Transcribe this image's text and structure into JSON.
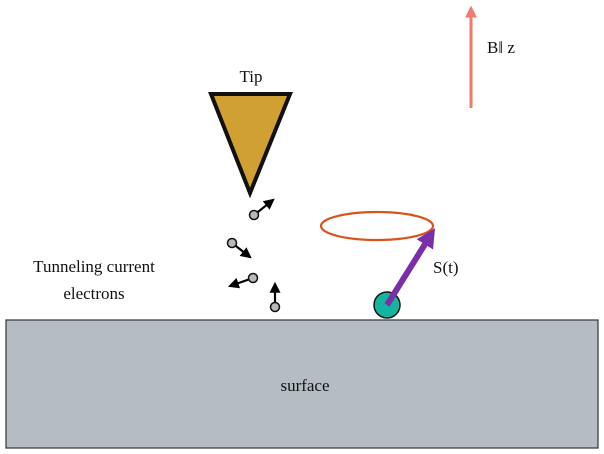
{
  "labels": {
    "tip": "Tip",
    "field": "B‖ z",
    "tunneling_line1": "Tunneling current",
    "tunneling_line2": "electrons",
    "spin": "S(t)",
    "surface": "surface"
  },
  "colors": {
    "tip_fill": "#d1a032",
    "field_arrow": "#f07a6e",
    "orbit": "#d8541f",
    "spin_arrow": "#7a2fa8",
    "spin_atom": "#14b5a0",
    "surface_fill": "#b6bcc3",
    "electron": "#b9b9b9"
  }
}
